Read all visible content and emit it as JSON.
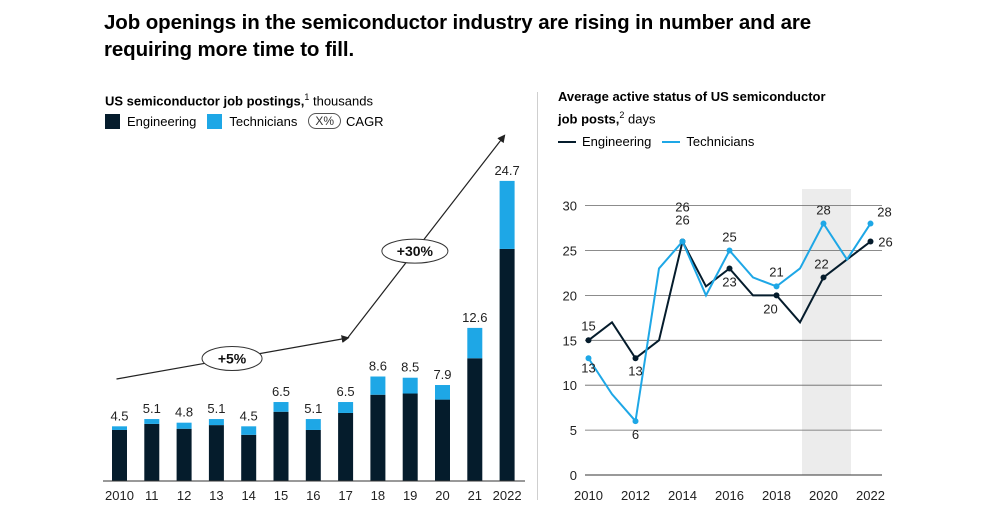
{
  "title": "Job openings in the semiconductor industry are rising in number and are requiring more time to fill.",
  "colors": {
    "engineering": "#051c2c",
    "technicians": "#1ea7e6",
    "grid": "#666666",
    "highlight": "#ececec"
  },
  "left": {
    "title_main": "US semiconductor job postings,",
    "title_sup": "1",
    "title_unit": " thousands",
    "legend": {
      "engineering": "Engineering",
      "technicians": "Technicians",
      "cagr_key": "X%",
      "cagr_label": "CAGR"
    },
    "cagr_labels": [
      "+5%",
      "+30%"
    ]
  },
  "right": {
    "title_line1": "Average active status of US semiconductor",
    "title_line2_main": "job posts,",
    "title_sup": "2",
    "title_unit": " days",
    "legend": {
      "engineering": "Engineering",
      "technicians": "Technicians"
    }
  },
  "chart_data": [
    {
      "type": "bar",
      "stacked": true,
      "categories": [
        "2010",
        "11",
        "12",
        "13",
        "14",
        "15",
        "16",
        "17",
        "18",
        "19",
        "20",
        "21",
        "2022"
      ],
      "series": [
        {
          "name": "Engineering",
          "values": [
            4.2,
            4.7,
            4.3,
            4.6,
            3.8,
            5.7,
            4.2,
            5.6,
            7.1,
            7.2,
            6.7,
            10.1,
            19.1
          ]
        },
        {
          "name": "Technicians",
          "values": [
            0.3,
            0.4,
            0.5,
            0.5,
            0.7,
            0.8,
            0.9,
            0.9,
            1.5,
            1.3,
            1.2,
            2.5,
            5.6
          ]
        }
      ],
      "totals": [
        "4.5",
        "5.1",
        "4.8",
        "5.1",
        "4.5",
        "6.5",
        "5.1",
        "6.5",
        "8.6",
        "8.5",
        "7.9",
        "12.6",
        "24.7"
      ],
      "annotations": [
        {
          "label": "+5%",
          "from": "2010",
          "to": "17"
        },
        {
          "label": "+30%",
          "from": "17",
          "to": "2022"
        }
      ]
    },
    {
      "type": "line",
      "x": [
        2010,
        2011,
        2012,
        2013,
        2014,
        2015,
        2016,
        2017,
        2018,
        2019,
        2020,
        2021,
        2022
      ],
      "xticks": [
        "2010",
        "2012",
        "2014",
        "2016",
        "2018",
        "2020",
        "2022"
      ],
      "yticks": [
        "0",
        "5",
        "10",
        "15",
        "20",
        "25",
        "30"
      ],
      "ylim": [
        0,
        30
      ],
      "grid": true,
      "highlight_x": [
        2019,
        2021
      ],
      "series": [
        {
          "name": "Engineering",
          "values": [
            15,
            17,
            13,
            15,
            26,
            21,
            23,
            20,
            20,
            17,
            22,
            24,
            26
          ]
        },
        {
          "name": "Technicians",
          "values": [
            13,
            9,
            6,
            23,
            26,
            20,
            25,
            22,
            21,
            23,
            28,
            24,
            28
          ]
        }
      ],
      "point_labels": [
        {
          "series": "Engineering",
          "x": 2010,
          "text": "15"
        },
        {
          "series": "Engineering",
          "x": 2012,
          "text": "13"
        },
        {
          "series": "Engineering",
          "x": 2014,
          "text": "26"
        },
        {
          "series": "Engineering",
          "x": 2016,
          "text": "23"
        },
        {
          "series": "Engineering",
          "x": 2018,
          "text": "20"
        },
        {
          "series": "Engineering",
          "x": 2020,
          "text": "22"
        },
        {
          "series": "Engineering",
          "x": 2022,
          "text": "26"
        },
        {
          "series": "Technicians",
          "x": 2010,
          "text": "13"
        },
        {
          "series": "Technicians",
          "x": 2012,
          "text": "6"
        },
        {
          "series": "Technicians",
          "x": 2014,
          "text": "26"
        },
        {
          "series": "Technicians",
          "x": 2016,
          "text": "25"
        },
        {
          "series": "Technicians",
          "x": 2018,
          "text": "21"
        },
        {
          "series": "Technicians",
          "x": 2020,
          "text": "28"
        },
        {
          "series": "Technicians",
          "x": 2022,
          "text": "28"
        }
      ]
    }
  ]
}
